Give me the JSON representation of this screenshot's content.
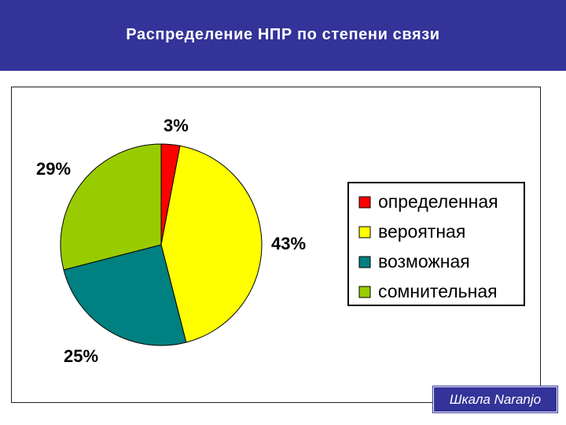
{
  "slide": {
    "title": "Распределение НПР по степени связи",
    "scale_label": "Шкала Naranjo"
  },
  "colors": {
    "title_bar": "#333399",
    "definite": "#ff0000",
    "probable": "#ffff00",
    "possible": "#008080",
    "doubtful": "#99cc00"
  },
  "chart_data": {
    "type": "pie",
    "title": "",
    "slices": [
      {
        "name": "определенная",
        "value": 3,
        "label": "3%",
        "color": "#ff0000"
      },
      {
        "name": "вероятная",
        "value": 43,
        "label": "43%",
        "color": "#ffff00"
      },
      {
        "name": "возможная",
        "value": 25,
        "label": "25%",
        "color": "#008080"
      },
      {
        "name": "сомнительная",
        "value": 29,
        "label": "29%",
        "color": "#99cc00"
      }
    ],
    "start_angle": "12 o'clock",
    "direction": "clockwise",
    "legend_position": "right"
  }
}
